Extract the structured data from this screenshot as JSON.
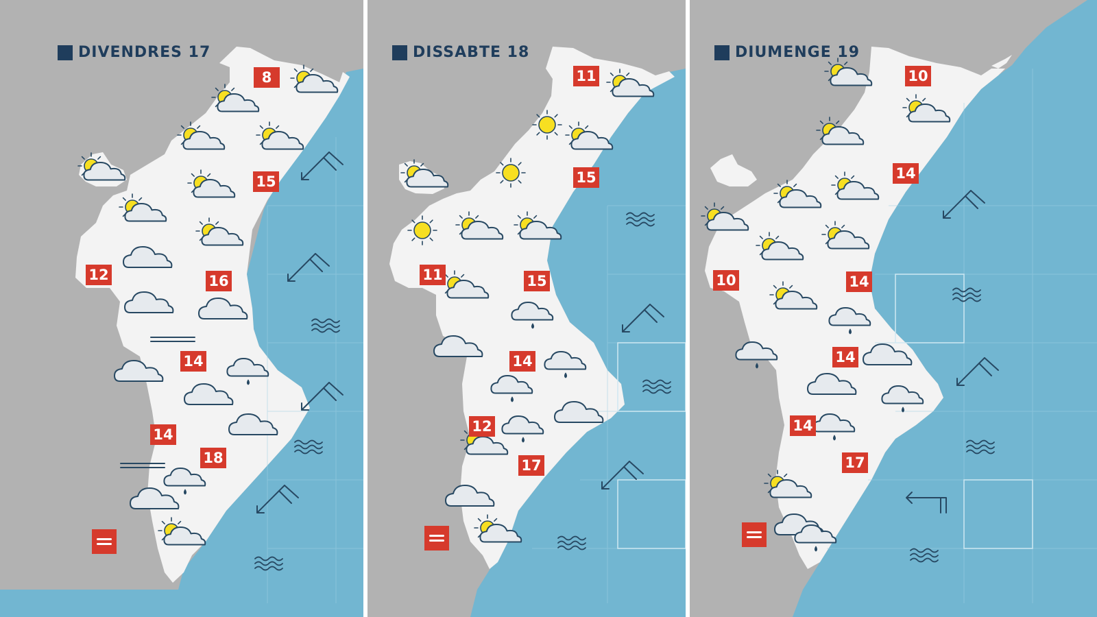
{
  "map_colors": {
    "land": "#f3f3f3",
    "sea": "#72b6d1",
    "outside": "#b2b2b2",
    "temp_box": "#d63a2c",
    "title": "#1f3d5c",
    "icon_outline": "#274862",
    "sun": "#f7df21"
  },
  "panels": [
    {
      "title": "DIVENDRES 17",
      "temperatures": [
        "8",
        "15",
        "12",
        "16",
        "14",
        "14",
        "18"
      ],
      "icons": [
        "sun-cloud-icon",
        "sun-cloud-icon",
        "sun-cloud-icon",
        "sun-cloud-icon",
        "sun-cloud-icon",
        "sun-cloud-icon",
        "sun-cloud-icon",
        "sun-cloud-icon",
        "cloud-icon",
        "cloud-icon",
        "cloud-icon",
        "cloud-icon",
        "rain-cloud-icon",
        "cloud-icon",
        "cloud-icon",
        "cloud-icon",
        "sun-cloud-icon",
        "rain-cloud-icon"
      ],
      "wind_icons": [
        "wind-arrow-icon",
        "wind-arrow-icon",
        "wind-arrow-icon",
        "wind-arrow-icon"
      ],
      "sea_state_icons": [
        "waves-icon",
        "waves-icon",
        "waves-icon"
      ],
      "fog_icons": [
        "fog-icon",
        "fog-icon"
      ]
    },
    {
      "title": "DISSABTE 18",
      "temperatures": [
        "11",
        "15",
        "11",
        "15",
        "14",
        "12",
        "17"
      ],
      "icons": [
        "sun-cloud-icon",
        "sun-icon",
        "sun-cloud-icon",
        "sun-icon",
        "sun-cloud-icon",
        "sun-icon",
        "sun-cloud-icon",
        "sun-cloud-icon",
        "sun-cloud-icon",
        "rain-cloud-icon",
        "cloud-icon",
        "rain-cloud-icon",
        "rain-cloud-icon",
        "cloud-icon",
        "rain-cloud-icon",
        "sun-cloud-icon",
        "cloud-icon",
        "sun-cloud-icon"
      ],
      "wind_icons": [
        "wind-arrow-icon",
        "wind-arrow-icon"
      ],
      "sea_state_icons": [
        "waves-icon",
        "waves-icon",
        "waves-icon"
      ],
      "fog_icons": []
    },
    {
      "title": "DIUMENGE 19",
      "temperatures": [
        "10",
        "14",
        "10",
        "14",
        "14",
        "14",
        "17"
      ],
      "icons": [
        "sun-cloud-icon",
        "sun-cloud-icon",
        "sun-cloud-icon",
        "sun-cloud-icon",
        "sun-cloud-icon",
        "sun-cloud-icon",
        "sun-cloud-icon",
        "sun-cloud-icon",
        "sun-cloud-icon",
        "rain-cloud-icon",
        "rain-cloud-icon",
        "cloud-icon",
        "cloud-icon",
        "rain-cloud-icon",
        "rain-cloud-icon",
        "cloud-icon",
        "sun-cloud-icon",
        "rain-cloud-icon"
      ],
      "wind_icons": [
        "wind-arrow-icon",
        "wind-arrow-icon",
        "wind-arrow-icon"
      ],
      "sea_state_icons": [
        "waves-icon",
        "waves-icon",
        "waves-icon"
      ],
      "fog_icons": []
    }
  ]
}
